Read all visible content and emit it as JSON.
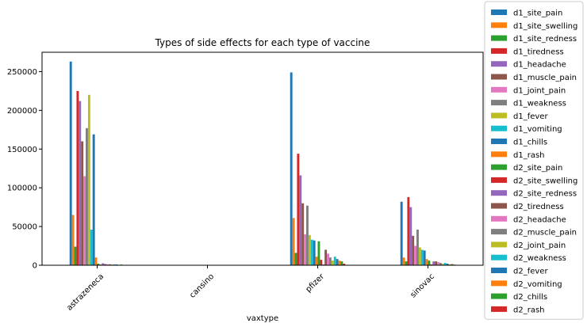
{
  "chart_data": {
    "type": "bar",
    "title": "Types of side effects for each type of vaccine",
    "xlabel": "vaxtype",
    "ylabel": "",
    "ylim": [
      0,
      275000
    ],
    "yticks": [
      0,
      50000,
      100000,
      150000,
      200000,
      250000
    ],
    "grid": false,
    "legend_position": "outside-right",
    "categories": [
      "astrazeneca",
      "cansino",
      "pfizer",
      "sinovac"
    ],
    "series": [
      {
        "name": "d1_site_pain",
        "color": "#1f77b4",
        "values": [
          263000,
          0,
          249000,
          82000
        ]
      },
      {
        "name": "d1_site_swelling",
        "color": "#ff7f0e",
        "values": [
          65000,
          0,
          61000,
          10000
        ]
      },
      {
        "name": "d1_site_redness",
        "color": "#2ca02c",
        "values": [
          24000,
          0,
          16000,
          5000
        ]
      },
      {
        "name": "d1_tiredness",
        "color": "#d62728",
        "values": [
          225000,
          0,
          144000,
          88000
        ]
      },
      {
        "name": "d1_headache",
        "color": "#9467bd",
        "values": [
          212000,
          0,
          116000,
          75000
        ]
      },
      {
        "name": "d1_muscle_pain",
        "color": "#8c564b",
        "values": [
          160000,
          0,
          80000,
          38000
        ]
      },
      {
        "name": "d1_joint_pain",
        "color": "#e377c2",
        "values": [
          115000,
          0,
          40000,
          25000
        ]
      },
      {
        "name": "d1_weakness",
        "color": "#7f7f7f",
        "values": [
          177000,
          0,
          77000,
          46000
        ]
      },
      {
        "name": "d1_fever",
        "color": "#bcbd22",
        "values": [
          220000,
          0,
          39000,
          23000
        ]
      },
      {
        "name": "d1_vomiting",
        "color": "#17becf",
        "values": [
          46000,
          0,
          33000,
          20000
        ]
      },
      {
        "name": "d1_chills",
        "color": "#1f77b4",
        "values": [
          169000,
          0,
          32000,
          19000
        ]
      },
      {
        "name": "d1_rash",
        "color": "#ff7f0e",
        "values": [
          10000,
          0,
          11000,
          8000
        ]
      },
      {
        "name": "d2_site_pain",
        "color": "#2ca02c",
        "values": [
          2000,
          0,
          31000,
          6000
        ]
      },
      {
        "name": "d2_site_swelling",
        "color": "#d62728",
        "values": [
          800,
          0,
          7000,
          1000
        ]
      },
      {
        "name": "d2_site_redness",
        "color": "#9467bd",
        "values": [
          2500,
          0,
          1000,
          5000
        ]
      },
      {
        "name": "d2_tiredness",
        "color": "#8c564b",
        "values": [
          1500,
          0,
          20000,
          5000
        ]
      },
      {
        "name": "d2_headache",
        "color": "#e377c2",
        "values": [
          1200,
          0,
          15000,
          4000
        ]
      },
      {
        "name": "d2_muscle_pain",
        "color": "#7f7f7f",
        "values": [
          1300,
          0,
          10000,
          3000
        ]
      },
      {
        "name": "d2_joint_pain",
        "color": "#bcbd22",
        "values": [
          900,
          0,
          6000,
          2000
        ]
      },
      {
        "name": "d2_weakness",
        "color": "#17becf",
        "values": [
          1100,
          0,
          11000,
          3000
        ]
      },
      {
        "name": "d2_fever",
        "color": "#1f77b4",
        "values": [
          1000,
          0,
          8000,
          2000
        ]
      },
      {
        "name": "d2_vomiting",
        "color": "#ff7f0e",
        "values": [
          400,
          0,
          6000,
          1000
        ]
      },
      {
        "name": "d2_chills",
        "color": "#2ca02c",
        "values": [
          900,
          0,
          5000,
          1500
        ]
      },
      {
        "name": "d2_rash",
        "color": "#d62728",
        "values": [
          300,
          0,
          2000,
          800
        ]
      }
    ]
  }
}
